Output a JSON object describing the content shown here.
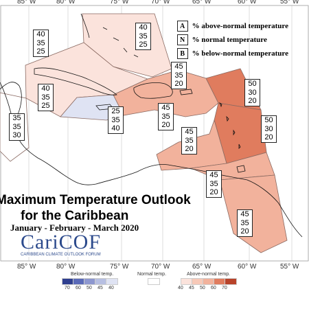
{
  "map": {
    "title_line1": "Maximum Temperature Outlook",
    "title_line2": "for the Caribbean",
    "period": "January - February - March 2020",
    "logo_name": "CariCOF",
    "logo_subtitle": "CARIBBEAN CLIMATE OUTLOOK FORUM",
    "lon_ticks_top": [
      "85° W",
      "80° W",
      "75° W",
      "70° W",
      "65° W",
      "60° W",
      "55° W"
    ],
    "lon_ticks_bottom": [
      "85° W",
      "80° W",
      "75° W",
      "70° W",
      "65° W",
      "60° W",
      "55° W"
    ],
    "key": [
      {
        "letter": "A",
        "text": "% above-normal temperature"
      },
      {
        "letter": "N",
        "text": "% normal temperature"
      },
      {
        "letter": "B",
        "text": "% below-normal temperature"
      }
    ],
    "regions": [
      {
        "name": "bahamas-north",
        "A": "40",
        "N": "35",
        "B": "25",
        "color": "#fbe3dc"
      },
      {
        "name": "cuba-west",
        "A": "40",
        "N": "35",
        "B": "25",
        "color": "#fbe3dc"
      },
      {
        "name": "florida-west",
        "A": "40",
        "N": "35",
        "B": "25",
        "color": "#fbe3dc"
      },
      {
        "name": "central-america-north",
        "A": "35",
        "N": "35",
        "B": "30",
        "color": "#ffffff"
      },
      {
        "name": "jamaica",
        "A": "25",
        "N": "35",
        "B": "40",
        "color": "#dfe3f3"
      },
      {
        "name": "hispaniola-north",
        "A": "45",
        "N": "35",
        "B": "20",
        "color": "#f2b29c"
      },
      {
        "name": "hispaniola-south",
        "A": "45",
        "N": "35",
        "B": "20",
        "color": "#f2b29c"
      },
      {
        "name": "leeward-islands",
        "A": "50",
        "N": "30",
        "B": "20",
        "color": "#e07c5e"
      },
      {
        "name": "windward-islands",
        "A": "50",
        "N": "30",
        "B": "20",
        "color": "#e07c5e"
      },
      {
        "name": "abc-islands",
        "A": "45",
        "N": "35",
        "B": "20",
        "color": "#f2b29c"
      },
      {
        "name": "trinidad",
        "A": "45",
        "N": "35",
        "B": "20",
        "color": "#f2b29c"
      },
      {
        "name": "guianas",
        "A": "45",
        "N": "35",
        "B": "20",
        "color": "#f2b29c"
      }
    ],
    "colorbar": {
      "below_label": "Below-normal temp.",
      "normal_label": "Normal temp.",
      "above_label": "Above-normal temp.",
      "below_values": [
        "70",
        "60",
        "50",
        "45",
        "40"
      ],
      "above_values": [
        "40",
        "45",
        "50",
        "60",
        "70"
      ],
      "below_colors": [
        "#2f3f8f",
        "#5a6ab8",
        "#8d97cf",
        "#b7bfe2",
        "#dfe3f3"
      ],
      "normal_color": "#ffffff",
      "above_colors": [
        "#fbe3dc",
        "#f7c9b8",
        "#f2b29c",
        "#e07c5e",
        "#b8432a"
      ]
    }
  }
}
